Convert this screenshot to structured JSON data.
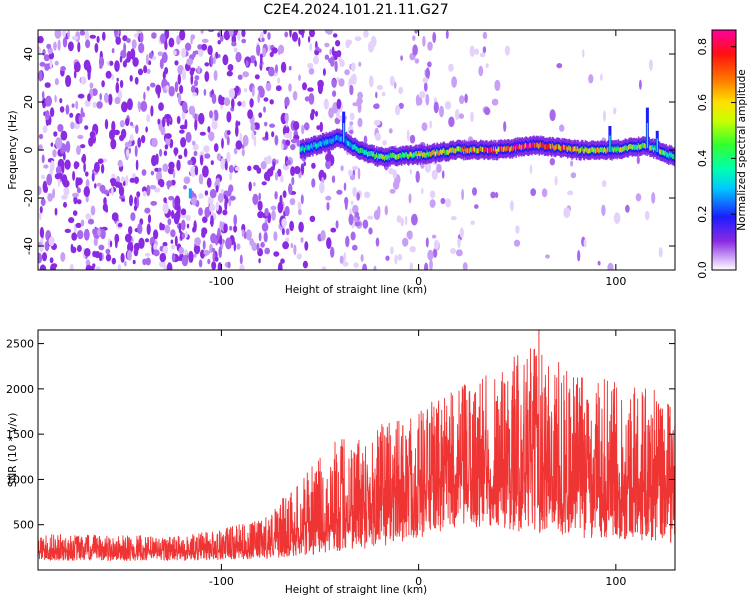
{
  "title": "C2E4.2024.101.21.11.G27",
  "chart_data": [
    {
      "type": "heatmap",
      "xlabel": "Height of straight line (km)",
      "ylabel": "Frequency (Hz)",
      "xlim": [
        -193,
        130
      ],
      "ylim": [
        -50,
        50
      ],
      "xticks": [
        -100,
        0,
        100
      ],
      "yticks": [
        -40,
        -20,
        0,
        20,
        40
      ],
      "colorbar": {
        "label": "Normalized spectral amplitude",
        "range": [
          0.0,
          0.86
        ],
        "ticks": [
          0.0,
          0.2,
          0.4,
          0.6,
          0.8
        ],
        "colormap": "rainbow (purple → blue → cyan → green → yellow → red → magenta)"
      },
      "features": {
        "signal_track": {
          "x": [
            -60,
            -40,
            -30,
            -20,
            0,
            20,
            40,
            60,
            80,
            100,
            115,
            130
          ],
          "frequency": [
            0,
            5,
            0,
            -3,
            -2,
            0,
            0,
            2,
            0,
            0,
            2,
            -3
          ],
          "peak_amplitude": [
            0.35,
            0.3,
            0.4,
            0.45,
            0.55,
            0.6,
            0.75,
            0.8,
            0.6,
            0.55,
            0.5,
            0.4
          ]
        },
        "noise_background": "dense speckle (amplitude ~0.05–0.15) for x < -30 km, fading toward higher heights"
      }
    },
    {
      "type": "line",
      "xlabel": "Height of straight line (km)",
      "ylabel": "SNR (10 * v/v)",
      "xlim": [
        -193,
        130
      ],
      "ylim": [
        0,
        2650
      ],
      "xticks": [
        -100,
        0,
        100
      ],
      "yticks": [
        500,
        1000,
        1500,
        2000,
        2500
      ],
      "color": "#ef3434",
      "envelope": {
        "x": [
          -193,
          -120,
          -80,
          -60,
          -40,
          -20,
          0,
          20,
          40,
          60,
          80,
          100,
          120,
          130
        ],
        "low": [
          100,
          100,
          120,
          150,
          200,
          250,
          350,
          450,
          450,
          400,
          350,
          350,
          300,
          300
        ],
        "high": [
          400,
          380,
          550,
          1000,
          1500,
          1600,
          1800,
          2000,
          2300,
          2500,
          2200,
          2100,
          2000,
          1800
        ],
        "peak": {
          "x": 61,
          "y": 2650
        }
      }
    }
  ]
}
